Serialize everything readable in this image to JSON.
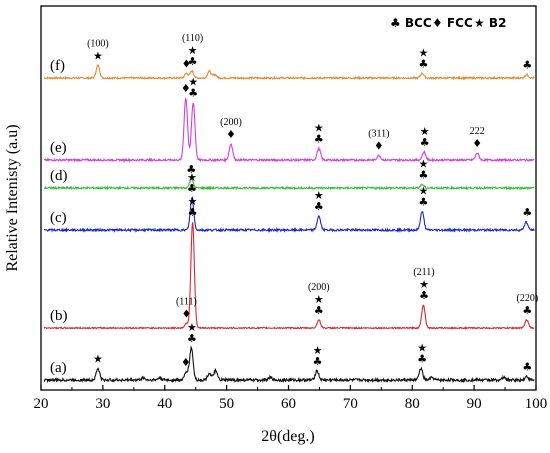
{
  "chart_data": {
    "type": "line",
    "xlabel": "2θ(deg.)",
    "ylabel": "Relative Intenisty (a.u)",
    "xlim": [
      20,
      100
    ],
    "x_ticks": [
      20,
      30,
      40,
      50,
      60,
      70,
      80,
      90,
      100
    ],
    "y_ticks_shown": false,
    "legend": {
      "placement": "top-right",
      "entries": [
        {
          "symbol": "♣",
          "label": "BCC"
        },
        {
          "symbol": "♦",
          "label": "FCC"
        },
        {
          "symbol": "★",
          "label": "B2"
        }
      ]
    },
    "series": [
      {
        "name": "(f)",
        "color": "#e58a2e",
        "noise": 0.7,
        "peaks": [
          [
            29.2,
            11
          ],
          [
            43.5,
            4
          ],
          [
            44.4,
            6
          ],
          [
            47.2,
            6
          ],
          [
            48.1,
            3
          ],
          [
            81.6,
            4
          ],
          [
            98.5,
            3
          ]
        ],
        "markers": [
          {
            "x": 29.2,
            "sym": "★",
            "label": "(100)"
          },
          {
            "x": 43.5,
            "sym": "♦"
          },
          {
            "x": 44.5,
            "sym": "★♣",
            "label": "(110)"
          },
          {
            "x": 81.8,
            "sym": "★♣"
          },
          {
            "x": 98.6,
            "sym": "♣"
          }
        ]
      },
      {
        "name": "(e)",
        "color": "#d23ee0",
        "noise": 0.8,
        "peaks": [
          [
            43.4,
            54
          ],
          [
            44.6,
            50
          ],
          [
            50.7,
            14
          ],
          [
            64.9,
            10
          ],
          [
            74.6,
            4
          ],
          [
            81.9,
            7
          ],
          [
            90.5,
            6
          ]
        ],
        "markers": [
          {
            "x": 43.4,
            "sym": "♦"
          },
          {
            "x": 44.6,
            "sym": "★♣"
          },
          {
            "x": 50.7,
            "sym": "♦",
            "label": "(200)"
          },
          {
            "x": 64.9,
            "sym": "★♣"
          },
          {
            "x": 74.6,
            "sym": "♦",
            "label": "(311)"
          },
          {
            "x": 82.0,
            "sym": "★♣"
          },
          {
            "x": 90.5,
            "sym": "♦",
            "label": "222"
          }
        ]
      },
      {
        "name": "(d)",
        "color": "#35c030",
        "noise": 0.8,
        "peaks": [
          [
            44.3,
            8
          ],
          [
            81.6,
            3
          ]
        ],
        "markers": [
          {
            "x": 44.3,
            "sym": "♣"
          },
          {
            "x": 81.8,
            "sym": "★♣"
          }
        ]
      },
      {
        "name": "(c)",
        "color": "#1a28c8",
        "noise": 0.9,
        "peaks": [
          [
            44.4,
            28
          ],
          [
            64.9,
            12
          ],
          [
            81.6,
            16
          ],
          [
            98.4,
            7
          ]
        ],
        "markers": [
          {
            "x": 44.4,
            "sym": "★♣"
          },
          {
            "x": 64.9,
            "sym": "★♣"
          },
          {
            "x": 81.8,
            "sym": "★♣"
          },
          {
            "x": 98.6,
            "sym": "♣"
          }
        ]
      },
      {
        "name": "(b)",
        "color": "#d8282e",
        "noise": 0.5,
        "peaks": [
          [
            43.5,
            4
          ],
          [
            44.5,
            92
          ],
          [
            64.9,
            7
          ],
          [
            81.8,
            20
          ],
          [
            98.5,
            7
          ]
        ],
        "markers": [
          {
            "x": 43.5,
            "sym": "♦",
            "label": "(111)"
          },
          {
            "x": 44.5,
            "sym": "★♣"
          },
          {
            "x": 64.9,
            "sym": "★♣",
            "label": "(200)"
          },
          {
            "x": 81.9,
            "sym": "★♣",
            "label": "(211)"
          },
          {
            "x": 98.6,
            "sym": "♣",
            "label": "(220)"
          }
        ]
      },
      {
        "name": "(a)",
        "color": "#111111",
        "noise": 1.2,
        "peaks": [
          [
            29.2,
            10
          ],
          [
            36.5,
            2
          ],
          [
            39.2,
            2
          ],
          [
            43.5,
            7
          ],
          [
            44.3,
            28
          ],
          [
            47.2,
            6
          ],
          [
            48.2,
            8
          ],
          [
            57.1,
            2
          ],
          [
            64.6,
            8
          ],
          [
            81.4,
            10
          ],
          [
            83.2,
            2
          ],
          [
            94.8,
            2
          ],
          [
            98.5,
            3
          ]
        ],
        "markers": [
          {
            "x": 29.2,
            "sym": "★"
          },
          {
            "x": 43.4,
            "sym": "♦"
          },
          {
            "x": 44.4,
            "sym": "★♣"
          },
          {
            "x": 64.7,
            "sym": "★♣"
          },
          {
            "x": 81.6,
            "sym": "★♣"
          },
          {
            "x": 98.6,
            "sym": "♣"
          }
        ]
      }
    ]
  }
}
